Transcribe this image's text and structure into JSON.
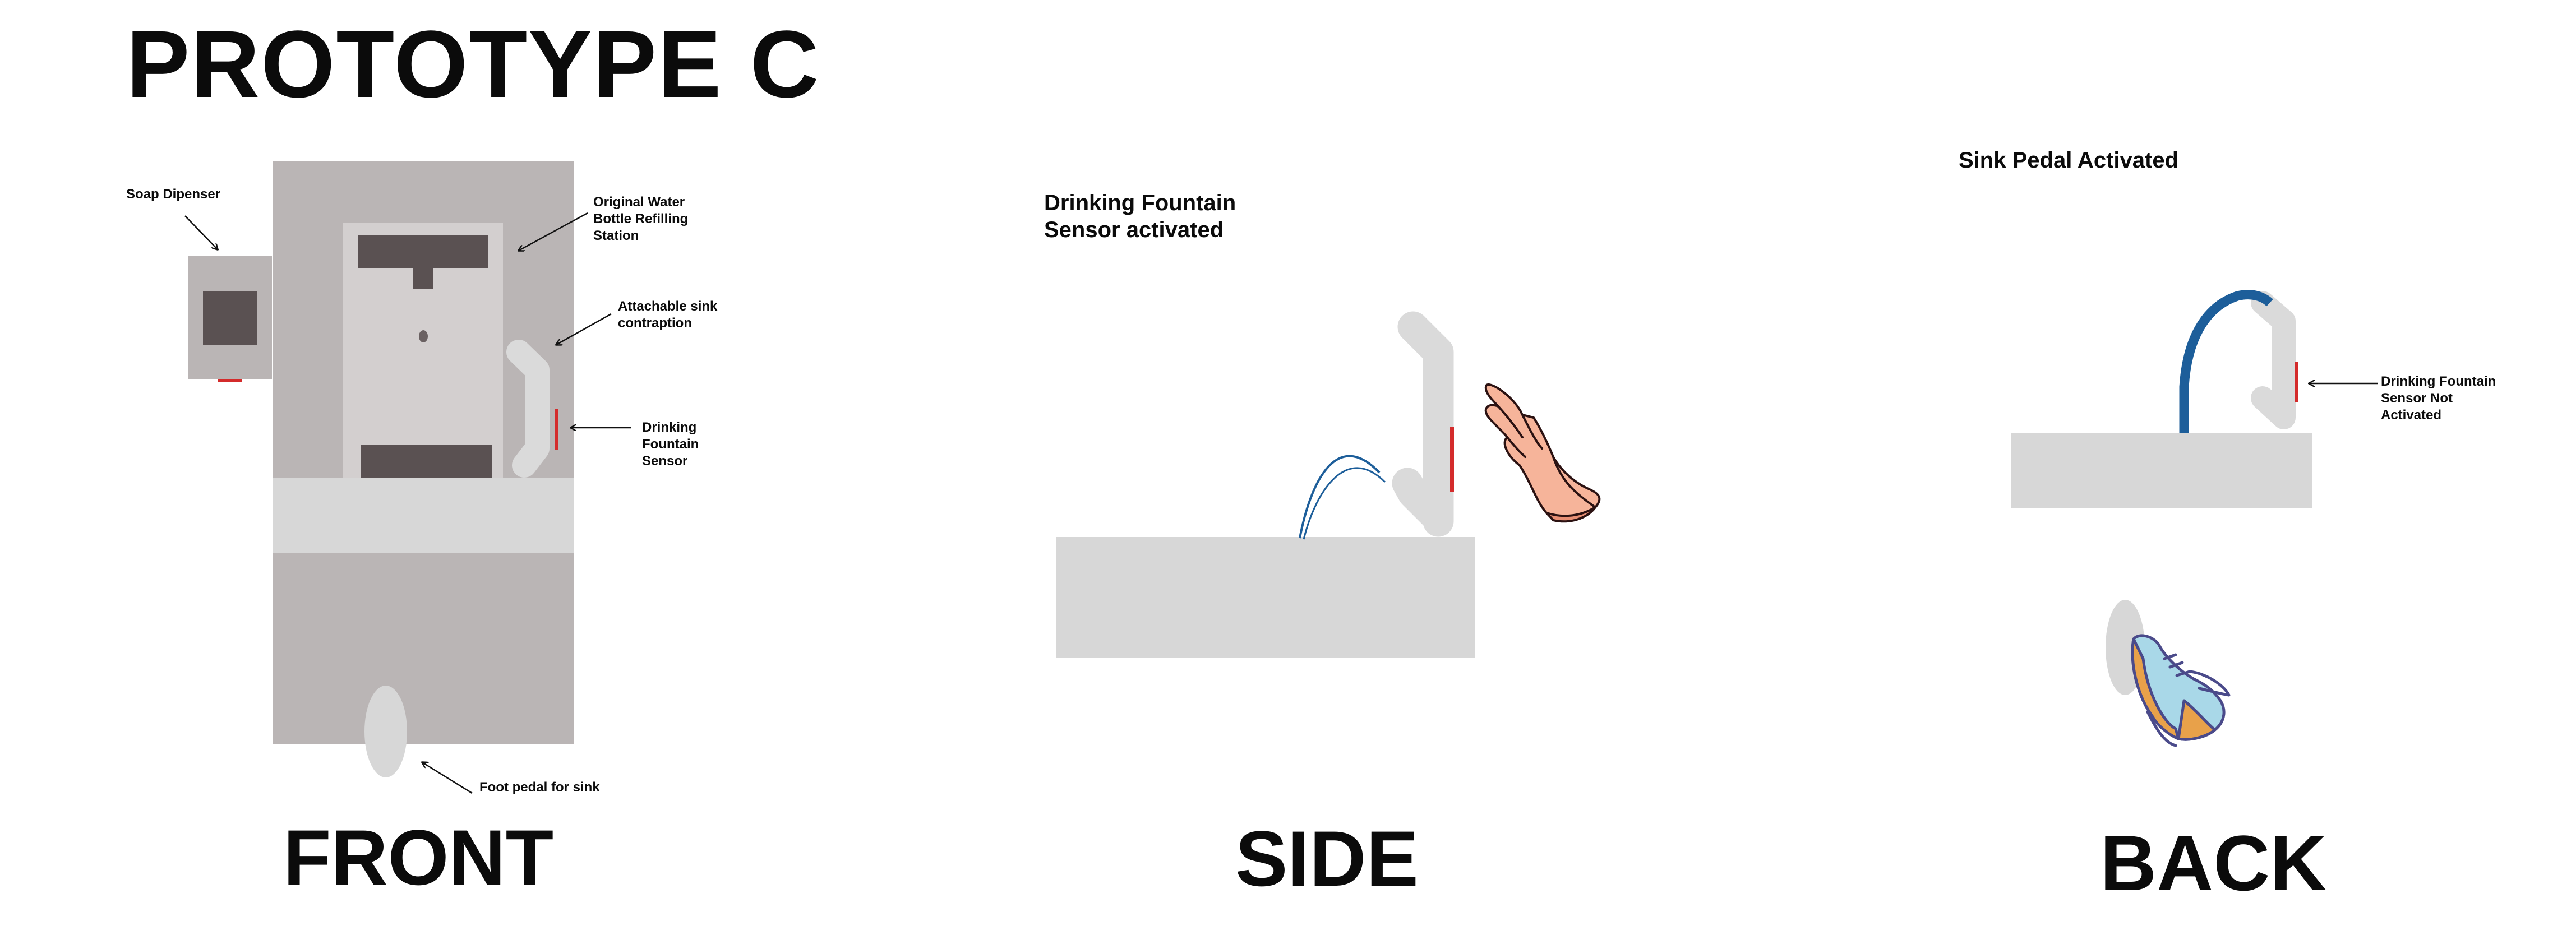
{
  "title": "PROTOTYPE C",
  "views": {
    "front": "FRONT",
    "side": "SIDE",
    "back": "BACK"
  },
  "front_labels": {
    "soap": "Soap Dipenser",
    "original_line1": "Original Water",
    "original_line2": "Bottle Refilling",
    "original_line3": "Station",
    "attach_line1": "Attachable sink",
    "attach_line2": "contraption",
    "sensor_line1": "Drinking",
    "sensor_line2": "Fountain",
    "sensor_line3": "Sensor",
    "pedal": "Foot pedal for sink"
  },
  "side_labels": {
    "line1": "Drinking Fountain",
    "line2": "Sensor activated"
  },
  "back_labels": {
    "pedal_activated": "Sink Pedal Activated",
    "not_line1": "Drinking Fountain",
    "not_line2": "Sensor Not",
    "not_line3": "Activated"
  },
  "colors": {
    "cabinet": "#bab5b5",
    "panel": "#d3cfcf",
    "dark": "#5a5152",
    "counter": "#d7d7d7",
    "sensor": "#d42b2b",
    "water": "#1d5e9a",
    "pipe": "#dadada"
  }
}
